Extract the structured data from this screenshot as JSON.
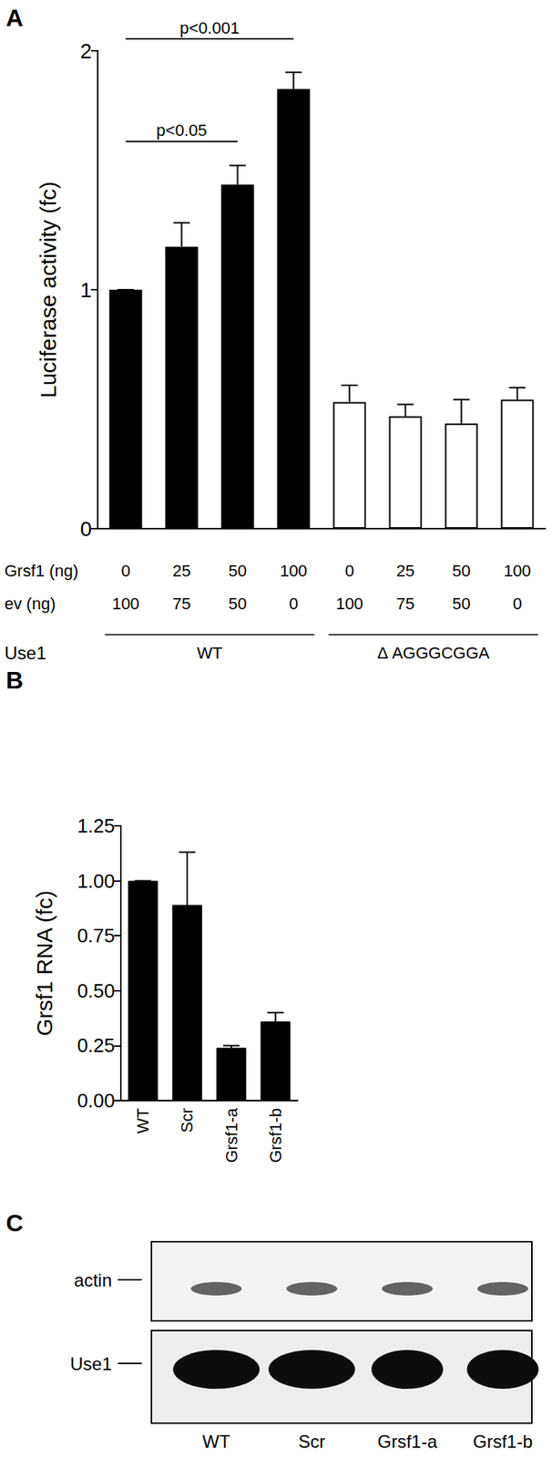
{
  "chart_data": [
    {
      "panel": "A",
      "type": "bar",
      "y_label": "Luciferase activity (fc)",
      "ylim": [
        0,
        2
      ],
      "yticks": [
        0,
        1,
        2
      ],
      "grid": false,
      "row_labels": {
        "grsf1": "Grsf1 (ng)",
        "ev": "ev (ng)"
      },
      "group_title": "Use1",
      "series": [
        {
          "name": "WT",
          "color": "#000000",
          "values": [
            1.0,
            1.18,
            1.44,
            1.84
          ],
          "errors": [
            0,
            0.1,
            0.08,
            0.07
          ],
          "grsf1": [
            0,
            25,
            50,
            100
          ],
          "ev": [
            100,
            75,
            50,
            0
          ]
        },
        {
          "name": "Δ AGGGCGGA",
          "color": "#ffffff",
          "values": [
            0.53,
            0.47,
            0.44,
            0.54
          ],
          "errors": [
            0.07,
            0.05,
            0.1,
            0.05
          ],
          "grsf1": [
            0,
            25,
            50,
            100
          ],
          "ev": [
            100,
            75,
            50,
            0
          ]
        }
      ],
      "brackets": [
        {
          "from": 0,
          "to": 2,
          "y": 1.62,
          "label": "p<0.05"
        },
        {
          "from": 0,
          "to": 3,
          "y": 2.05,
          "label": "p<0.001"
        }
      ]
    },
    {
      "panel": "B",
      "type": "bar",
      "y_label": "Grsf1 RNA (fc)",
      "categories": [
        "WT",
        "Scr",
        "Grsf1-a",
        "Grsf1-b"
      ],
      "values": [
        1.0,
        0.89,
        0.24,
        0.36
      ],
      "errors": [
        0,
        0.24,
        0.01,
        0.04
      ],
      "color": "#000000",
      "ylim": [
        0,
        1.25
      ],
      "yticks": [
        {
          "value": 0,
          "label": "0.00"
        },
        {
          "value": 0.25,
          "label": "0.25"
        },
        {
          "value": 0.5,
          "label": "0.50"
        },
        {
          "value": 0.75,
          "label": "0.75"
        },
        {
          "value": 1,
          "label": "1.00"
        },
        {
          "value": 1.25,
          "label": "1.25"
        }
      ],
      "grid": false
    }
  ],
  "blot": {
    "panel": "C",
    "rows": [
      "actin",
      "Use1"
    ],
    "lanes": [
      "WT",
      "Scr",
      "Grsf1-a",
      "Grsf1-b"
    ]
  }
}
